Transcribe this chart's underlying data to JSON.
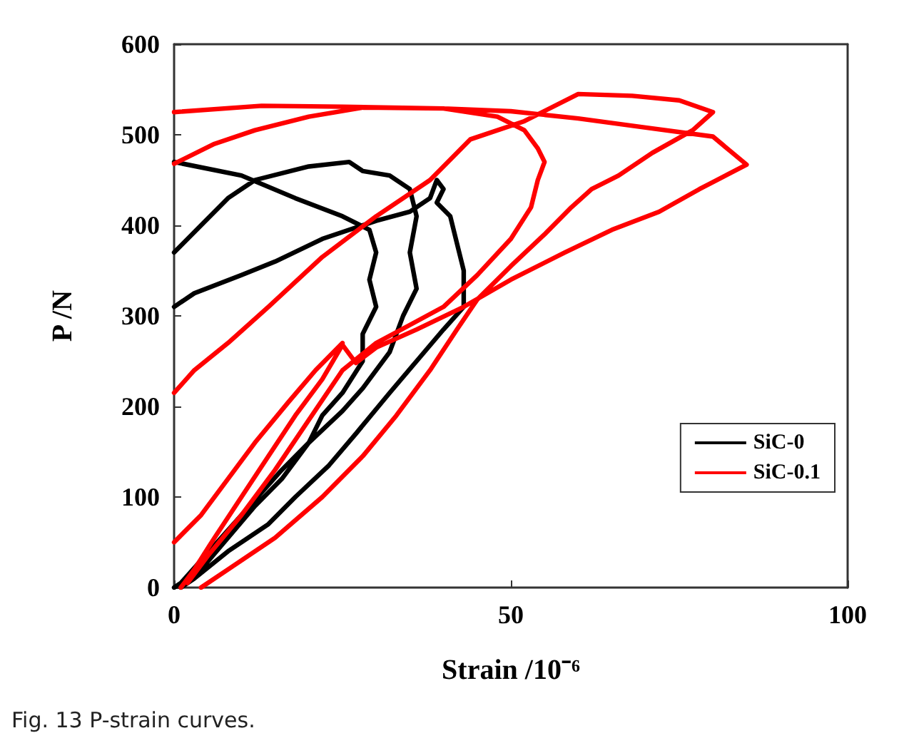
{
  "chart_data": {
    "type": "line",
    "xlabel": "Strain /10⁻⁶",
    "ylabel": "P /N",
    "xlim": [
      0,
      100
    ],
    "xticks": [
      0,
      50,
      100
    ],
    "ylim": [
      0,
      600
    ],
    "yticks": [
      0,
      100,
      200,
      300,
      400,
      500,
      600
    ],
    "grid": false,
    "legend": "bottom right",
    "line_style": "solid",
    "annotations": [
      "Fig. 13 P-strain curves."
    ],
    "series": [
      {
        "name": "SiC-0",
        "color": "#000000",
        "x": [
          0,
          10,
          18,
          25,
          29,
          30,
          29,
          30,
          28,
          28,
          25,
          22,
          20,
          16,
          13,
          10,
          7,
          4,
          1,
          null,
          0,
          4,
          8,
          12,
          20,
          26,
          28,
          32,
          35,
          36,
          35,
          36,
          34,
          32,
          28,
          25,
          20,
          16,
          12,
          8,
          4,
          0,
          null,
          0,
          3,
          10,
          15,
          22,
          30,
          35,
          38,
          39,
          40,
          39,
          41,
          42,
          43,
          43,
          40,
          36,
          32,
          27,
          23,
          18,
          14,
          8,
          3,
          1
        ],
        "values": [
          470,
          455,
          430,
          410,
          395,
          370,
          340,
          310,
          280,
          250,
          215,
          190,
          160,
          130,
          105,
          80,
          55,
          30,
          5,
          null,
          370,
          400,
          430,
          450,
          465,
          470,
          460,
          455,
          440,
          410,
          370,
          330,
          300,
          260,
          220,
          195,
          160,
          120,
          90,
          55,
          20,
          0,
          null,
          310,
          325,
          345,
          360,
          385,
          405,
          415,
          430,
          450,
          440,
          425,
          410,
          380,
          350,
          310,
          285,
          250,
          215,
          170,
          135,
          100,
          70,
          40,
          10,
          0
        ]
      },
      {
        "name": "SiC-0.1",
        "color": "#ff0000",
        "x": [
          0,
          13,
          25,
          40,
          50,
          60,
          70,
          80,
          85,
          78,
          72,
          65,
          58,
          50,
          43,
          36,
          30,
          27,
          25,
          22,
          18,
          14,
          10,
          6,
          3,
          1,
          null,
          0,
          6,
          12,
          20,
          28,
          40,
          48,
          52,
          54,
          55,
          54,
          53,
          50,
          45,
          40,
          35,
          30,
          25,
          20,
          15,
          10,
          5,
          2,
          null,
          0,
          3,
          8,
          14,
          22,
          30,
          38,
          44,
          52,
          60,
          68,
          75,
          80,
          77,
          71,
          66,
          62,
          59,
          55,
          50,
          45,
          42,
          38,
          33,
          28,
          22,
          15,
          8,
          4,
          null,
          0,
          4,
          8,
          12,
          17,
          21,
          25
        ],
        "values": [
          525,
          532,
          531,
          529,
          526,
          518,
          508,
          498,
          467,
          440,
          415,
          395,
          370,
          340,
          310,
          285,
          265,
          248,
          268,
          230,
          190,
          145,
          100,
          55,
          20,
          0,
          null,
          468,
          490,
          505,
          520,
          530,
          529,
          520,
          505,
          485,
          470,
          450,
          420,
          385,
          345,
          310,
          290,
          270,
          240,
          185,
          130,
          80,
          35,
          5,
          null,
          215,
          240,
          270,
          310,
          365,
          410,
          450,
          495,
          515,
          545,
          543,
          538,
          525,
          505,
          480,
          455,
          440,
          420,
          390,
          355,
          318,
          285,
          240,
          190,
          145,
          100,
          55,
          20,
          0,
          null,
          50,
          80,
          120,
          160,
          205,
          240,
          270
        ]
      }
    ]
  }
}
